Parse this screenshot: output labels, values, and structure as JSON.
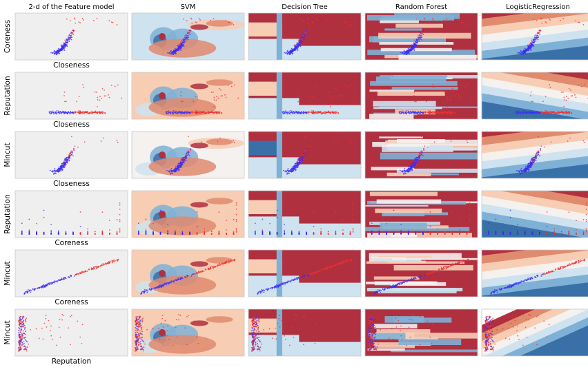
{
  "figure": {
    "column_titles": [
      "2-d of the Feature model",
      "SVM",
      "Decision Tree",
      "Random Forest",
      "LogisticRegression"
    ],
    "rows": [
      {
        "ylabel": "Coreness",
        "xlabel": "Closeness"
      },
      {
        "ylabel": "Reputation",
        "xlabel": "Closeness"
      },
      {
        "ylabel": "Mincut",
        "xlabel": "Closeness"
      },
      {
        "ylabel": "Reputation",
        "xlabel": "Coreness"
      },
      {
        "ylabel": "Mincut",
        "xlabel": "Coreness"
      },
      {
        "ylabel": "Mincut",
        "xlabel": "Reputation"
      }
    ]
  },
  "colors": {
    "class_0": "#3b2cf5",
    "class_1": "#f03030",
    "plain_background": "#efefef",
    "map_deep_blue": "#3a70a8",
    "map_mid_blue": "#7fb1d6",
    "map_light_blue": "#cfe2ef",
    "map_white": "#f4f1ef",
    "map_light_red": "#f7cdb4",
    "map_mid_red": "#e08a6e",
    "map_deep_red": "#b0303f"
  },
  "chart_data": {
    "type": "scatter",
    "description_type": "grid of 2-class scatter plots with classifier decision surfaces",
    "classes": [
      "class_0",
      "class_1"
    ],
    "grid_rows": 6,
    "grid_cols": 5,
    "axis_ticks": "none",
    "grid": false
  }
}
